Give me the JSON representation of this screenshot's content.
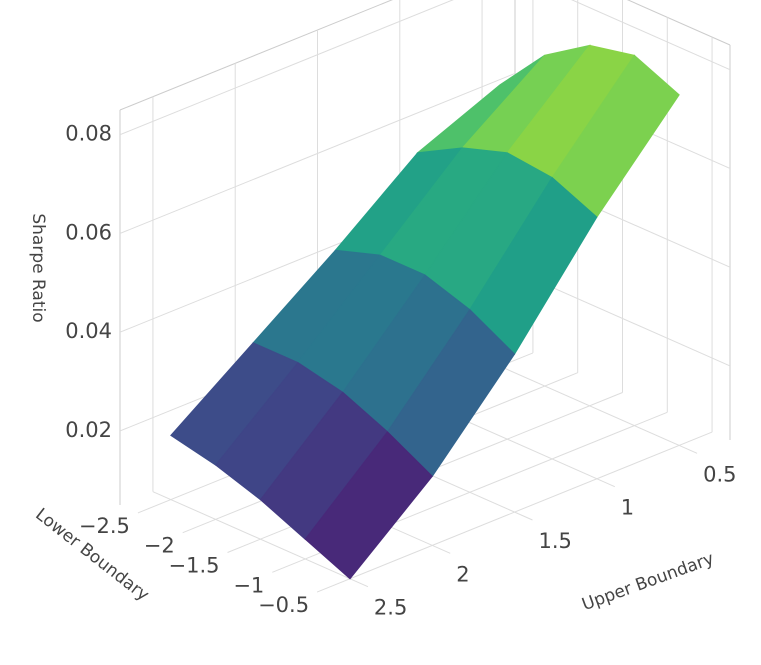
{
  "chart_data": {
    "type": "surface",
    "x_label": "Lower Boundary",
    "y_label": "Upper Boundary",
    "z_label": "Sharpe Ratio",
    "x": [
      -2.5,
      -2,
      -1.5,
      -1,
      -0.5
    ],
    "y": [
      0.5,
      1,
      1.5,
      2,
      2.5
    ],
    "z": [
      [
        0.062,
        0.055,
        0.042,
        0.03,
        0.018
      ],
      [
        0.072,
        0.06,
        0.045,
        0.03,
        0.016
      ],
      [
        0.078,
        0.063,
        0.045,
        0.028,
        0.013
      ],
      [
        0.08,
        0.062,
        0.042,
        0.024,
        0.009
      ],
      [
        0.076,
        0.058,
        0.037,
        0.019,
        0.005
      ]
    ],
    "colorscale": "viridis",
    "xlim": [
      -2.7,
      -0.3
    ],
    "ylim": [
      0.3,
      2.7
    ],
    "zlim": [
      0.005,
      0.085
    ],
    "xticks": [
      {
        "value": -2.5,
        "label": "−2.5"
      },
      {
        "value": -2,
        "label": "−2"
      },
      {
        "value": -1.5,
        "label": "−1.5"
      },
      {
        "value": -1,
        "label": "−1"
      },
      {
        "value": -0.5,
        "label": "−0.5"
      }
    ],
    "yticks": [
      0.5,
      1,
      1.5,
      2,
      2.5
    ],
    "zticks": [
      0.02,
      0.04,
      0.06,
      0.08
    ],
    "grid": true
  }
}
